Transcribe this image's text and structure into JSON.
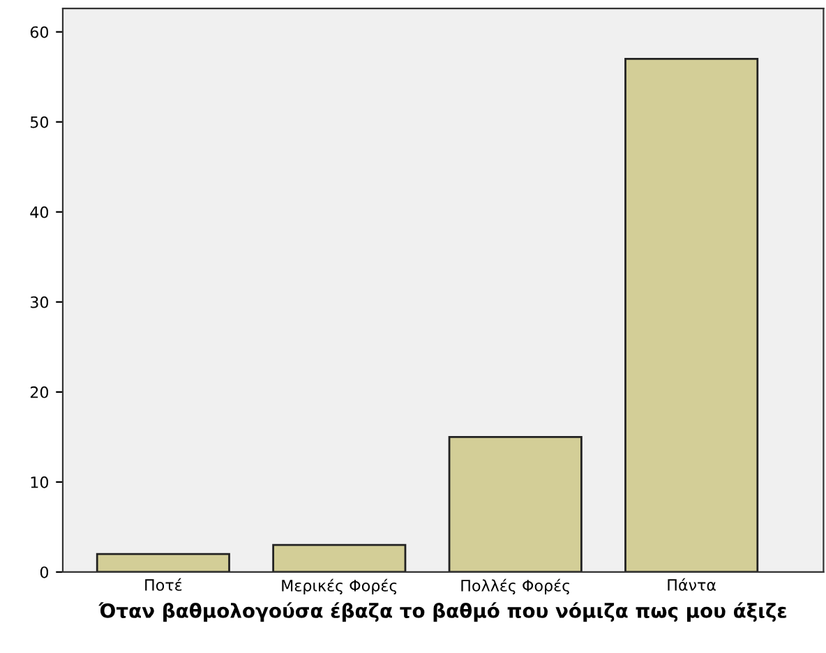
{
  "chart_data": {
    "type": "bar",
    "xlabel": "Όταν βαθμολογούσα έβαζα το βαθμό που νόμιζα πως μου άξιζε",
    "categories": [
      "Ποτέ",
      "Μερικές Φορές",
      "Πολλές Φορές",
      "Πάντα"
    ],
    "values": [
      2,
      3,
      15,
      57
    ],
    "color": "#d3ce97",
    "ylim": [
      0,
      62.6
    ],
    "yticks": [
      0,
      10,
      20,
      30,
      40,
      50,
      60
    ],
    "grid": false
  }
}
